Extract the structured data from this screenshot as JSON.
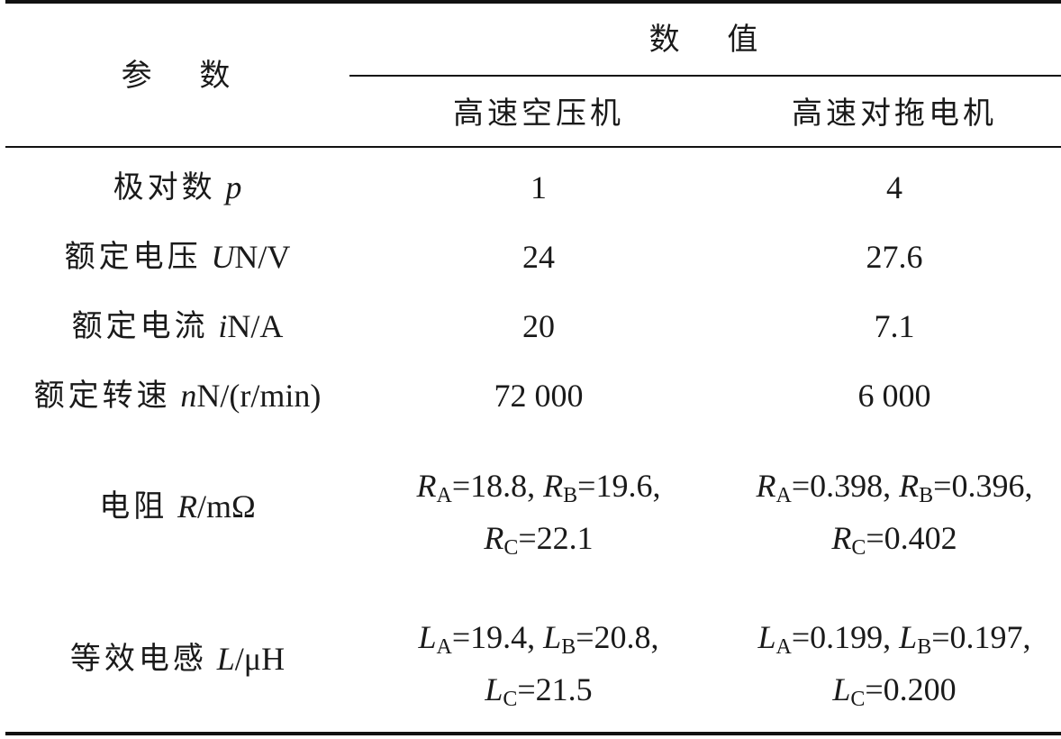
{
  "header": {
    "param": "参 数",
    "value": "数 值",
    "col1": "高速空压机",
    "col2": "高速对拖电机"
  },
  "rows": [
    {
      "label_cn": "极对数",
      "label_sym": "p",
      "label_sub": "",
      "label_unit": "",
      "v1": "1",
      "v2": "4"
    },
    {
      "label_cn": "额定电压",
      "label_sym": "U",
      "label_sub": "N",
      "label_unit": "/V",
      "v1": "24",
      "v2": "27.6"
    },
    {
      "label_cn": "额定电流",
      "label_sym": "i",
      "label_sub": "N",
      "label_unit": "/A",
      "v1": "20",
      "v2": "7.1"
    },
    {
      "label_cn": "额定转速",
      "label_sym": "n",
      "label_sub": "N",
      "label_unit": "/(r/min)",
      "v1": "72 000",
      "v2": "6 000"
    }
  ],
  "resistance": {
    "label_cn": "电阻",
    "label_sym": "R",
    "label_unit": "/mΩ",
    "sym": "R",
    "col1": {
      "A": "=18.8, ",
      "B": "=19.6,",
      "C": "=22.1"
    },
    "col2": {
      "A": "=0.398, ",
      "B": "=0.396,",
      "C": "=0.402"
    }
  },
  "inductance": {
    "label_cn": "等效电感",
    "label_sym": "L",
    "label_unit": "/μH",
    "sym": "L",
    "col1": {
      "A": "=19.4, ",
      "B": "=20.8,",
      "C": "=21.5"
    },
    "col2": {
      "A": "=0.199, ",
      "B": "=0.197,",
      "C": "=0.200"
    }
  },
  "subs": {
    "A": "A",
    "B": "B",
    "C": "C"
  }
}
